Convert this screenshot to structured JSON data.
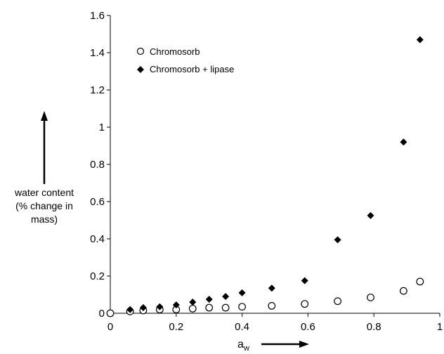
{
  "chart_data": {
    "type": "scatter",
    "title": "",
    "xlabel": "a",
    "xlabel_subscript": "w",
    "ylabel_lines": [
      "water content",
      "(% change in",
      "mass)"
    ],
    "xlim": [
      0,
      1
    ],
    "ylim": [
      0,
      1.6
    ],
    "x_ticks": [
      "0",
      "0.2",
      "0.4",
      "0.6",
      "0.8",
      "1"
    ],
    "y_ticks": [
      "0",
      "0.2",
      "0.4",
      "0.6",
      "0.8",
      "1",
      "1.2",
      "1.4",
      "1.6"
    ],
    "grid": false,
    "legend_position": "top-left",
    "series": [
      {
        "name": "Chromosorb",
        "marker": "open-circle",
        "color": "#000000",
        "x": [
          0.0,
          0.06,
          0.1,
          0.15,
          0.2,
          0.25,
          0.3,
          0.35,
          0.4,
          0.49,
          0.59,
          0.69,
          0.79,
          0.89,
          0.94
        ],
        "y": [
          0.0,
          0.01,
          0.015,
          0.02,
          0.02,
          0.025,
          0.03,
          0.03,
          0.035,
          0.04,
          0.05,
          0.065,
          0.085,
          0.12,
          0.17
        ]
      },
      {
        "name": "Chromosorb + lipase",
        "marker": "filled-diamond",
        "color": "#000000",
        "x": [
          0.06,
          0.1,
          0.15,
          0.2,
          0.25,
          0.3,
          0.35,
          0.4,
          0.49,
          0.59,
          0.69,
          0.79,
          0.89,
          0.94
        ],
        "y": [
          0.02,
          0.03,
          0.035,
          0.045,
          0.06,
          0.075,
          0.09,
          0.11,
          0.135,
          0.175,
          0.395,
          0.525,
          0.92,
          1.47
        ]
      }
    ]
  }
}
